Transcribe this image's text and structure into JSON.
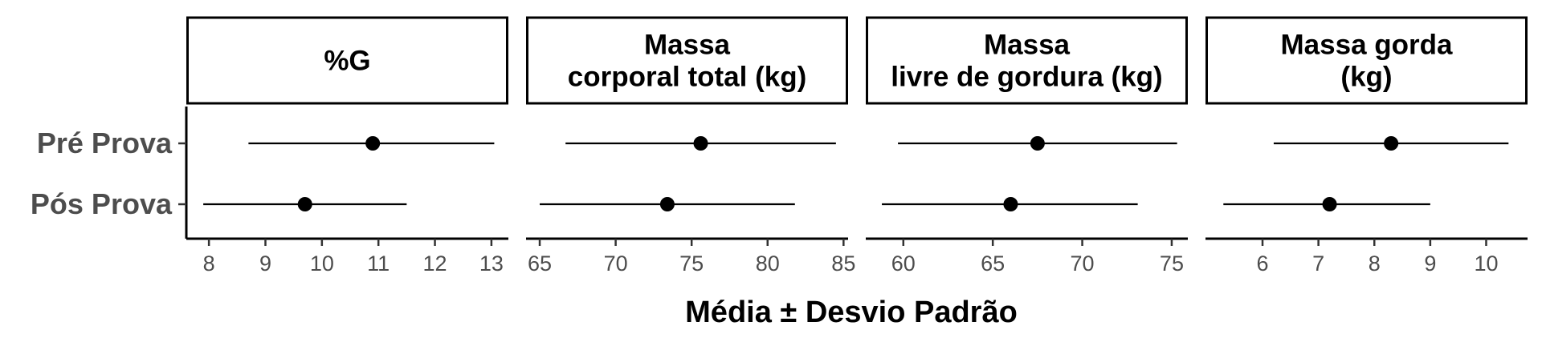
{
  "chart_data": {
    "type": "dot-errorbar",
    "xlabel": "Média ± Desvio Padrão",
    "categories": [
      "Pré Prova",
      "Pós Prova"
    ],
    "grid": false,
    "facets": [
      {
        "title_lines": [
          "%G"
        ],
        "xlim": [
          7.6,
          13.3
        ],
        "ticks": [
          8,
          9,
          10,
          11,
          12,
          13
        ],
        "points": [
          {
            "category": "Pré Prova",
            "mean": 10.9,
            "low": 8.7,
            "high": 13.05
          },
          {
            "category": "Pós Prova",
            "mean": 9.7,
            "low": 7.9,
            "high": 11.5
          }
        ]
      },
      {
        "title_lines": [
          "Massa",
          "corporal total (kg)"
        ],
        "xlim": [
          64.1,
          85.3
        ],
        "ticks": [
          65,
          70,
          75,
          80,
          85
        ],
        "points": [
          {
            "category": "Pré Prova",
            "mean": 75.6,
            "low": 66.7,
            "high": 84.5
          },
          {
            "category": "Pós Prova",
            "mean": 73.4,
            "low": 65.0,
            "high": 81.8
          }
        ]
      },
      {
        "title_lines": [
          "Massa",
          "livre de gordura (kg)"
        ],
        "xlim": [
          57.9,
          75.9
        ],
        "ticks": [
          60,
          65,
          70,
          75
        ],
        "points": [
          {
            "category": "Pré Prova",
            "mean": 67.5,
            "low": 59.7,
            "high": 75.3
          },
          {
            "category": "Pós Prova",
            "mean": 66.0,
            "low": 58.8,
            "high": 73.1
          }
        ]
      },
      {
        "title_lines": [
          "Massa gorda",
          "(kg)"
        ],
        "xlim": [
          4.98,
          10.74
        ],
        "ticks": [
          6,
          7,
          8,
          9,
          10
        ],
        "points": [
          {
            "category": "Pré Prova",
            "mean": 8.3,
            "low": 6.2,
            "high": 10.4
          },
          {
            "category": "Pós Prova",
            "mean": 7.2,
            "low": 5.3,
            "high": 9.0
          }
        ]
      }
    ]
  }
}
